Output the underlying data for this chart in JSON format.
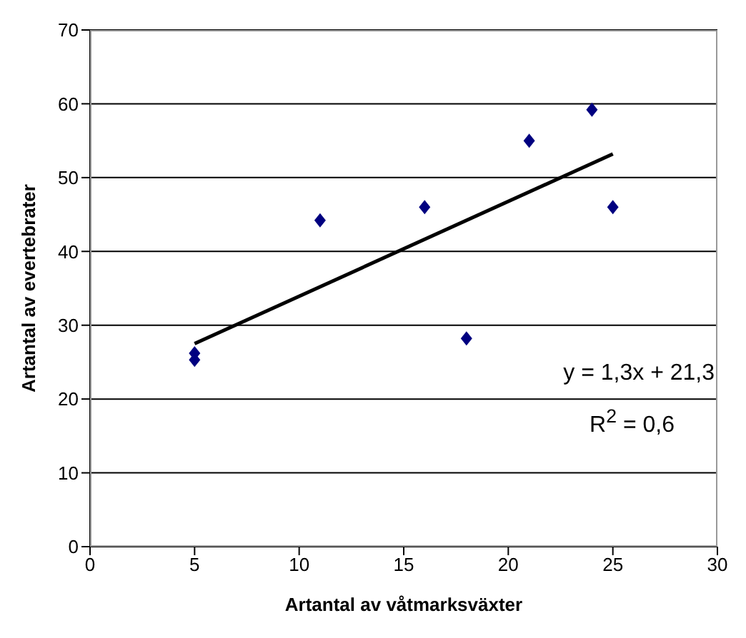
{
  "chart_data": {
    "type": "scatter",
    "xlabel": "Artantal av våtmarksväxter",
    "ylabel": "Artantal av evertebrater",
    "series": [
      {
        "color": "#000080",
        "x": [
          5,
          5,
          11,
          16,
          18,
          21,
          24,
          25
        ],
        "values": [
          26.2,
          25.3,
          44.2,
          46,
          28.2,
          55,
          59.2,
          46
        ]
      },
      {
        "type": "line",
        "marker": "none",
        "color": "#000000",
        "x": [
          5,
          25
        ],
        "values": [
          27.5,
          53.2
        ]
      }
    ],
    "marker": "diamond",
    "xlim": [
      0,
      30
    ],
    "xticks": [
      0,
      5,
      10,
      15,
      20,
      25,
      30
    ],
    "ylim": [
      0,
      70
    ],
    "yticks": [
      0,
      10,
      20,
      30,
      40,
      50,
      60,
      70
    ],
    "grid": "y",
    "annotations": [
      "y = 1,3x + 21,3",
      "R$^{2}$ = 0,6"
    ]
  }
}
